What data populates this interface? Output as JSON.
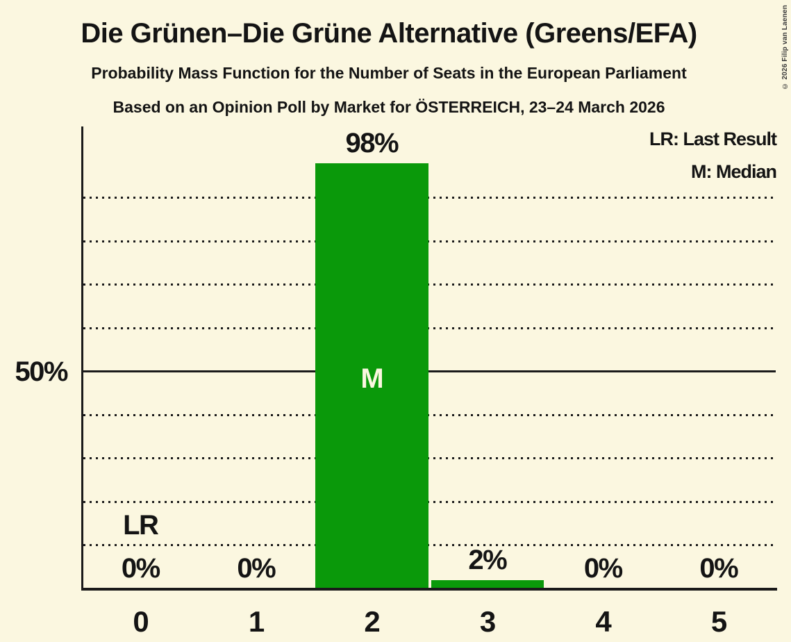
{
  "title": "Die Grünen–Die Grüne Alternative (Greens/EFA)",
  "subtitles": {
    "line1": "Probability Mass Function for the Number of Seats in the European Parliament",
    "line2": "Based on an Opinion Poll by Market for ÖSTERREICH, 23–24 March 2026"
  },
  "copyright": "© 2026 Filip van Laenen",
  "legend": {
    "last_result": "LR: Last Result",
    "median": "M: Median"
  },
  "colors": {
    "background": "#FBF7E0",
    "bar_green": "#0A990A",
    "text": "#141414",
    "median_label": "#FBF7E0"
  },
  "chart_data": {
    "type": "bar",
    "title": "Die Grünen–Die Grüne Alternative (Greens/EFA)",
    "subtitle": "Probability Mass Function for the Number of Seats in the European Parliament",
    "source_line": "Based on an Opinion Poll by Market for ÖSTERREICH, 23–24 March 2026",
    "categories": [
      "0",
      "1",
      "2",
      "3",
      "4",
      "5"
    ],
    "values": [
      0,
      0,
      98,
      2,
      0,
      0
    ],
    "bar_labels": [
      "0%",
      "0%",
      "98%",
      "2%",
      "0%",
      "0%"
    ],
    "xlabel": "",
    "ylabel": "",
    "ylim": [
      0,
      106
    ],
    "y_tick": {
      "pct": 50,
      "label": "50%"
    },
    "y_gridlines_pct": [
      10,
      20,
      30,
      40,
      50,
      60,
      70,
      80,
      90
    ],
    "solid_gridline_pct": 50,
    "grid": "dotted horizontal lines every 10%, solid line at 50%",
    "legend_position": "top-right",
    "legend_entries": [
      "LR: Last Result",
      "M: Median"
    ],
    "median": {
      "category": "2",
      "marker": "M"
    },
    "last_result": {
      "category": "0",
      "marker": "LR"
    }
  }
}
